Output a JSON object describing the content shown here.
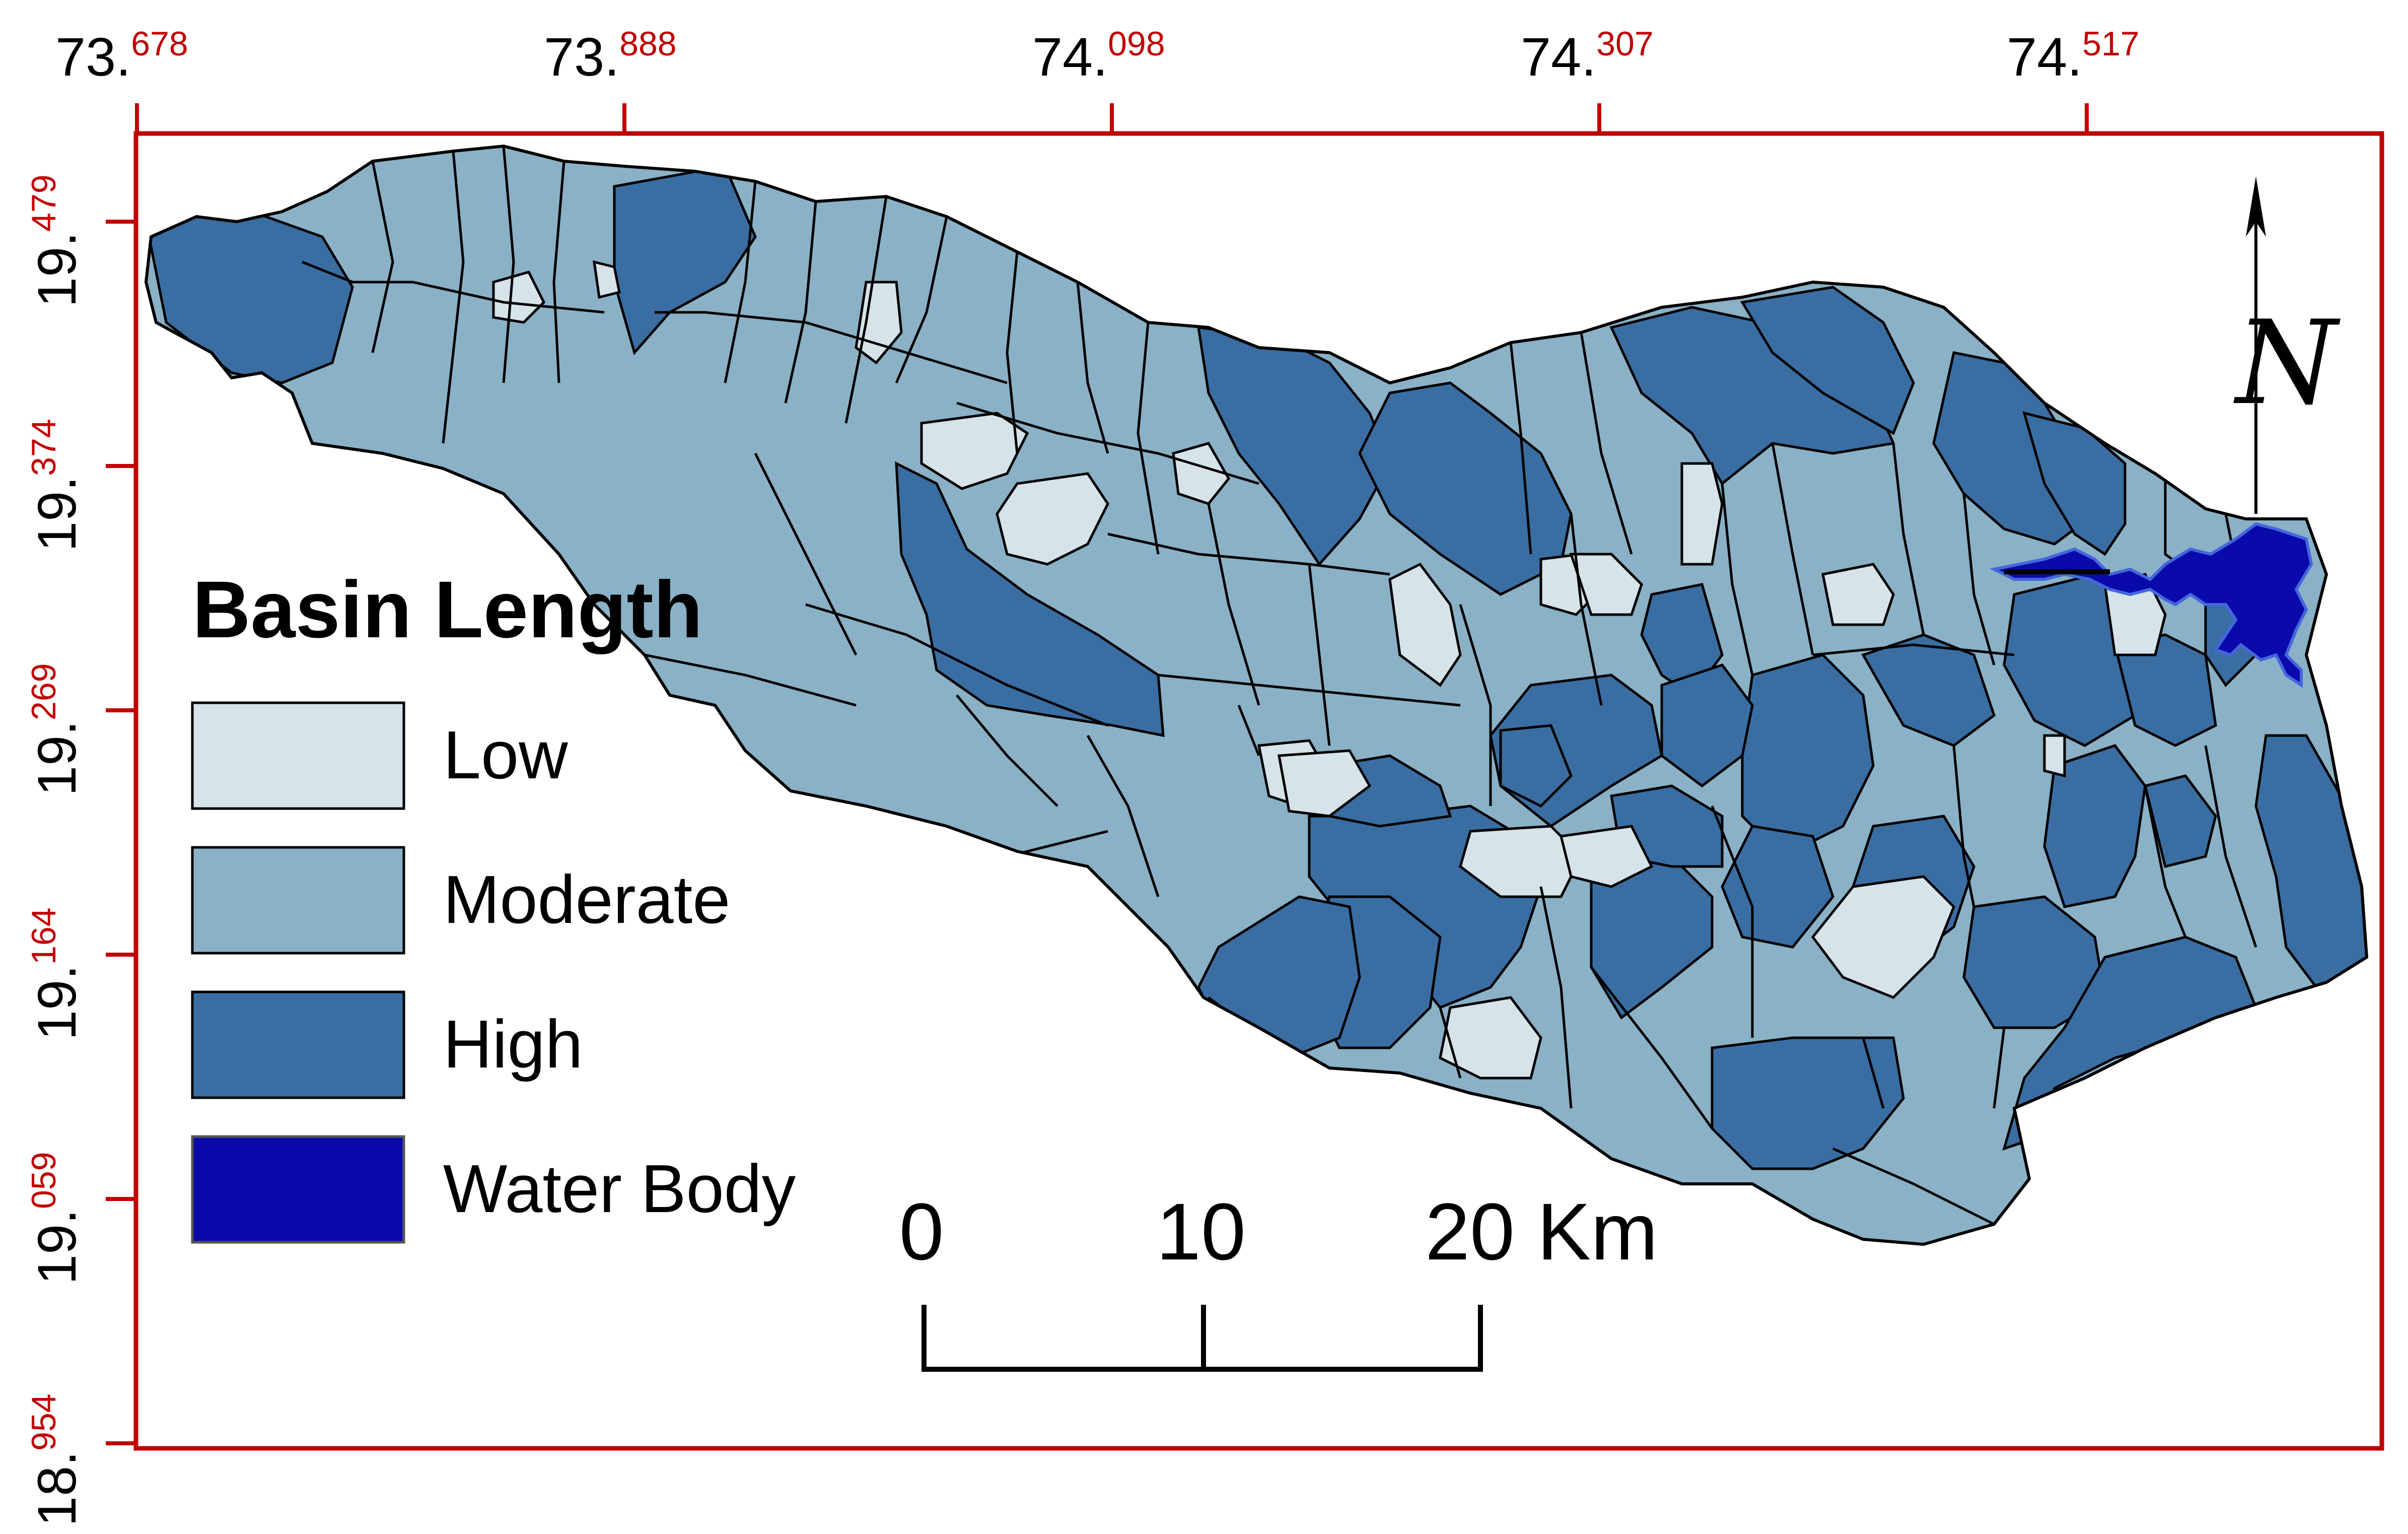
{
  "map": {
    "legend": {
      "title": "Basin Length",
      "items": [
        {
          "label": "Low",
          "color": "#d6e3e9"
        },
        {
          "label": "Moderate",
          "color": "#8ab1c6"
        },
        {
          "label": "High",
          "color": "#3a6ea3"
        },
        {
          "label": "Water Body",
          "color": "#0a0aaa"
        }
      ]
    },
    "frame_color": "#c00000",
    "boundary_color": "#000000",
    "water_color": "#0a0aaa",
    "top_ticks": [
      {
        "major": "73.",
        "minor": "678"
      },
      {
        "major": "73.",
        "minor": "888"
      },
      {
        "major": "74.",
        "minor": "098"
      },
      {
        "major": "74.",
        "minor": "307"
      },
      {
        "major": "74.",
        "minor": "517"
      }
    ],
    "left_ticks": [
      {
        "major": "19.",
        "minor": "479"
      },
      {
        "major": "19.",
        "minor": "374"
      },
      {
        "major": "19.",
        "minor": "269"
      },
      {
        "major": "19.",
        "minor": "164"
      },
      {
        "major": "19.",
        "minor": "059"
      },
      {
        "major": "18.",
        "minor": "954"
      }
    ],
    "scale_bar": {
      "labels": [
        "0",
        "10",
        "20 Km"
      ]
    },
    "north_arrow": {
      "letter": "N",
      "icon": "north-arrow-icon"
    }
  }
}
